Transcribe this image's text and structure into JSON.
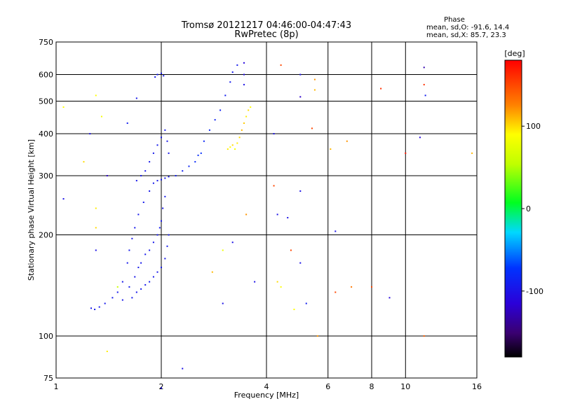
{
  "chart_data": {
    "type": "scatter",
    "title": "Tromsø 20121217 04:46:00-04:47:43",
    "subtitle": "RwPretec (8p)",
    "xlabel": "Frequency [MHz]",
    "ylabel": "Stationary phase Virtual Height [km]",
    "x_scale": "log",
    "y_scale": "log",
    "xlim": [
      1,
      16
    ],
    "ylim": [
      75,
      750
    ],
    "x_ticks": [
      1,
      2,
      4,
      6,
      8,
      10,
      16
    ],
    "x_tick_labels": [
      "1",
      "2",
      "4",
      "6",
      "8",
      "10",
      "16"
    ],
    "y_ticks": [
      75,
      100,
      200,
      300,
      400,
      500,
      600,
      750
    ],
    "y_tick_labels": [
      "75",
      "100",
      "200",
      "300",
      "400",
      "500",
      "600",
      "750"
    ],
    "grid": true,
    "stats": {
      "heading": "Phase",
      "line1": "mean, sd,O: -91.6, 14.4",
      "line2": "mean, sd,X: 85.7, 23.3"
    },
    "colorbar": {
      "unit": "[deg]",
      "range": [
        -180,
        180
      ],
      "ticks": [
        100,
        0,
        -100
      ],
      "tick_labels": [
        "100",
        "0",
        "-100"
      ]
    },
    "series": [
      {
        "name": "O",
        "points": [
          [
            1.26,
            121,
            -95
          ],
          [
            1.29,
            120,
            -96
          ],
          [
            1.33,
            122,
            -94
          ],
          [
            1.38,
            125,
            -95
          ],
          [
            1.45,
            130,
            -93
          ],
          [
            1.5,
            135,
            -94
          ],
          [
            1.55,
            128,
            -95
          ],
          [
            1.62,
            140,
            -92
          ],
          [
            1.68,
            150,
            -96
          ],
          [
            1.72,
            160,
            -94
          ],
          [
            1.75,
            165,
            -95
          ],
          [
            1.8,
            175,
            -93
          ],
          [
            1.85,
            180,
            -96
          ],
          [
            1.9,
            190,
            -94
          ],
          [
            1.95,
            200,
            -95
          ],
          [
            1.98,
            210,
            -92
          ],
          [
            2.0,
            220,
            -94
          ],
          [
            2.02,
            240,
            -95
          ],
          [
            2.05,
            260,
            -93
          ],
          [
            1.65,
            130,
            -94
          ],
          [
            1.7,
            135,
            -96
          ],
          [
            1.75,
            138,
            -95
          ],
          [
            1.8,
            142,
            -94
          ],
          [
            1.85,
            145,
            -93
          ],
          [
            1.9,
            150,
            -95
          ],
          [
            1.95,
            155,
            -96
          ],
          [
            2.0,
            160,
            -94
          ],
          [
            2.05,
            170,
            -95
          ],
          [
            2.08,
            185,
            -93
          ],
          [
            2.1,
            200,
            -94
          ],
          [
            1.55,
            145,
            -95
          ],
          [
            1.6,
            165,
            -94
          ],
          [
            1.62,
            180,
            -93
          ],
          [
            1.65,
            195,
            -96
          ],
          [
            1.68,
            210,
            -95
          ],
          [
            1.72,
            230,
            -94
          ],
          [
            1.78,
            250,
            -93
          ],
          [
            1.85,
            270,
            -95
          ],
          [
            1.9,
            285,
            -94
          ],
          [
            1.95,
            290,
            -96
          ],
          [
            2.0,
            292,
            -95
          ],
          [
            2.05,
            295,
            -94
          ],
          [
            2.1,
            298,
            -93
          ],
          [
            1.7,
            290,
            -95
          ],
          [
            1.75,
            300,
            -94
          ],
          [
            1.8,
            310,
            -96
          ],
          [
            1.85,
            330,
            -95
          ],
          [
            1.9,
            350,
            -94
          ],
          [
            1.95,
            370,
            -93
          ],
          [
            2.0,
            390,
            -95
          ],
          [
            2.05,
            410,
            -94
          ],
          [
            2.08,
            380,
            -96
          ],
          [
            2.1,
            350,
            -95
          ],
          [
            1.92,
            590,
            -94
          ],
          [
            1.95,
            600,
            -93
          ],
          [
            2.0,
            605,
            -95
          ],
          [
            2.03,
            595,
            -94
          ],
          [
            2.2,
            300,
            -90
          ],
          [
            2.3,
            310,
            -88
          ],
          [
            2.4,
            320,
            -85
          ],
          [
            2.5,
            330,
            -80
          ],
          [
            2.55,
            345,
            -78
          ],
          [
            2.6,
            350,
            -75
          ],
          [
            2.65,
            380,
            -82
          ],
          [
            2.75,
            410,
            -84
          ],
          [
            2.85,
            440,
            -86
          ],
          [
            2.95,
            470,
            -88
          ],
          [
            3.05,
            520,
            -90
          ],
          [
            3.15,
            570,
            -92
          ],
          [
            3.2,
            610,
            -94
          ],
          [
            3.3,
            640,
            -93
          ],
          [
            3.45,
            650,
            -110
          ],
          [
            3.45,
            600,
            -105
          ],
          [
            3.45,
            560,
            -100
          ]
        ]
      },
      {
        "name": "X",
        "points": [
          [
            3.1,
            360,
            95
          ],
          [
            3.15,
            365,
            90
          ],
          [
            3.2,
            370,
            100
          ],
          [
            3.25,
            360,
            85
          ],
          [
            3.3,
            375,
            95
          ],
          [
            3.35,
            390,
            100
          ],
          [
            3.4,
            410,
            110
          ],
          [
            3.45,
            430,
            105
          ],
          [
            3.5,
            450,
            95
          ],
          [
            3.55,
            470,
            100
          ],
          [
            3.6,
            480,
            90
          ]
        ]
      }
    ],
    "scattered_points": [
      [
        1.05,
        480,
        90
      ],
      [
        1.05,
        256,
        -100
      ],
      [
        1.2,
        330,
        100
      ],
      [
        1.25,
        400,
        -100
      ],
      [
        1.3,
        520,
        90
      ],
      [
        1.3,
        240,
        95
      ],
      [
        1.3,
        210,
        100
      ],
      [
        1.3,
        180,
        -100
      ],
      [
        1.35,
        450,
        85
      ],
      [
        1.4,
        300,
        -120
      ],
      [
        1.4,
        90,
        95
      ],
      [
        1.5,
        140,
        60
      ],
      [
        1.6,
        430,
        -90
      ],
      [
        1.7,
        510,
        -95
      ],
      [
        2.0,
        70,
        -100
      ],
      [
        2.3,
        80,
        -100
      ],
      [
        2.8,
        155,
        110
      ],
      [
        3.0,
        180,
        80
      ],
      [
        3.0,
        125,
        -100
      ],
      [
        3.2,
        190,
        -100
      ],
      [
        3.5,
        230,
        120
      ],
      [
        3.7,
        145,
        -100
      ],
      [
        4.2,
        400,
        -100
      ],
      [
        4.2,
        280,
        150
      ],
      [
        4.3,
        230,
        -100
      ],
      [
        4.3,
        145,
        100
      ],
      [
        4.4,
        640,
        150
      ],
      [
        4.4,
        140,
        90
      ],
      [
        4.6,
        225,
        -100
      ],
      [
        4.7,
        180,
        150
      ],
      [
        4.8,
        120,
        90
      ],
      [
        5.0,
        600,
        -100
      ],
      [
        5.0,
        515,
        -120
      ],
      [
        5.0,
        270,
        -100
      ],
      [
        5.0,
        165,
        -100
      ],
      [
        5.2,
        125,
        -90
      ],
      [
        5.4,
        415,
        150
      ],
      [
        5.5,
        580,
        120
      ],
      [
        5.5,
        540,
        110
      ],
      [
        5.6,
        100,
        120
      ],
      [
        6.1,
        360,
        110
      ],
      [
        6.3,
        205,
        -100
      ],
      [
        6.3,
        135,
        150
      ],
      [
        6.8,
        380,
        120
      ],
      [
        7.0,
        140,
        130
      ],
      [
        8.0,
        140,
        150
      ],
      [
        8.5,
        545,
        160
      ],
      [
        9.0,
        130,
        -110
      ],
      [
        10.0,
        350,
        170
      ],
      [
        11.0,
        390,
        -110
      ],
      [
        11.3,
        630,
        -130
      ],
      [
        11.3,
        560,
        160
      ],
      [
        11.4,
        520,
        -90
      ],
      [
        11.3,
        100,
        140
      ],
      [
        15.5,
        350,
        110
      ]
    ]
  }
}
